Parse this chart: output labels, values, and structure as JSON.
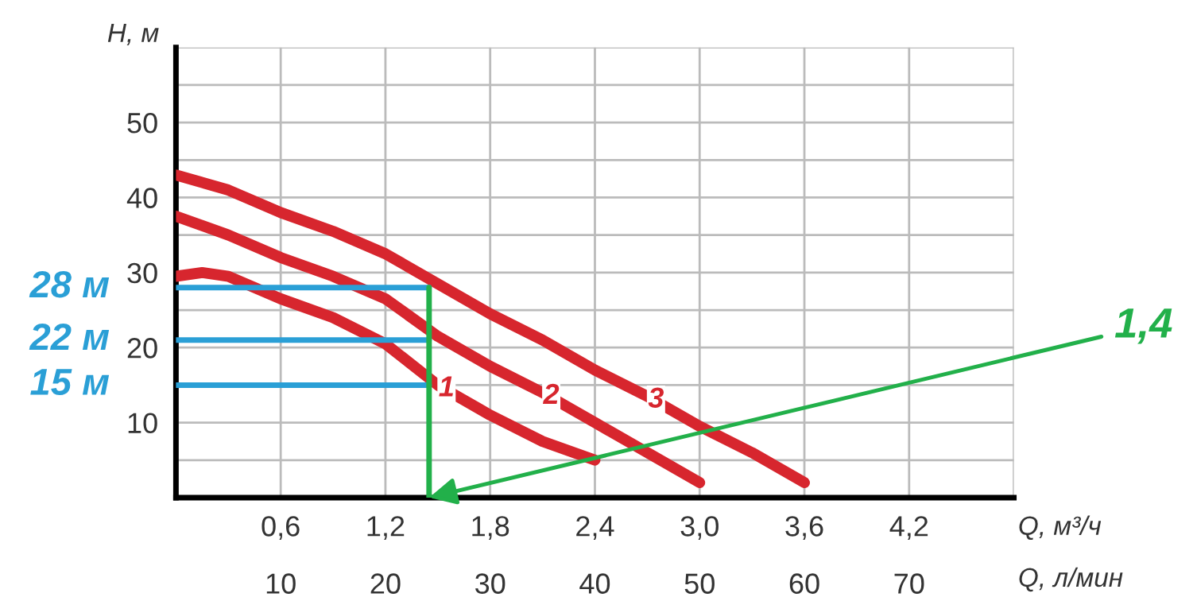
{
  "chart_data": {
    "type": "line",
    "xlabel": "Q, м³/ч",
    "x2label": "Q, л/мин",
    "ylabel": "H, м",
    "xlim": [
      0,
      4.8
    ],
    "xticks": [
      {
        "value": 0.6,
        "label": "0,6"
      },
      {
        "value": 1.2,
        "label": "1,2"
      },
      {
        "value": 1.8,
        "label": "1,8"
      },
      {
        "value": 2.4,
        "label": "2,4"
      },
      {
        "value": 3.0,
        "label": "3,0"
      },
      {
        "value": 3.6,
        "label": "3,6"
      },
      {
        "value": 4.2,
        "label": "4,2"
      },
      {
        "value": 4.8,
        "label": null
      }
    ],
    "x2lim": [
      0,
      80
    ],
    "x2ticks": [
      10,
      20,
      30,
      40,
      50,
      60,
      70
    ],
    "ylim": [
      0,
      60
    ],
    "yticks": [
      {
        "value": 5,
        "label": null
      },
      10,
      {
        "value": 15,
        "label": null
      },
      20,
      {
        "value": 25,
        "label": null
      },
      30,
      {
        "value": 35,
        "label": null
      },
      40,
      {
        "value": 45,
        "label": null
      },
      50,
      {
        "value": 55,
        "label": null
      },
      {
        "value": 60,
        "label": null
      }
    ],
    "grid": true,
    "legend": false,
    "marker": "none",
    "line_style": "solid",
    "series": [
      {
        "name": "1",
        "color": "#d7262e",
        "x": [
          0,
          0.15,
          0.3,
          0.6,
          0.9,
          1.2,
          1.5,
          1.8,
          2.1,
          2.4
        ],
        "values": [
          29.5,
          30,
          29.5,
          26.5,
          24,
          20.5,
          15,
          11,
          7.5,
          5
        ]
      },
      {
        "name": "2",
        "color": "#d7262e",
        "x": [
          0,
          0.3,
          0.6,
          0.9,
          1.2,
          1.5,
          1.8,
          2.1,
          2.4,
          2.7,
          3.0
        ],
        "values": [
          37.5,
          35,
          32,
          29.5,
          26.5,
          21.5,
          17.5,
          14,
          10,
          6,
          2
        ]
      },
      {
        "name": "3",
        "color": "#d7262e",
        "x": [
          0,
          0.3,
          0.6,
          0.9,
          1.2,
          1.5,
          1.8,
          2.1,
          2.4,
          2.7,
          3.0,
          3.3,
          3.6
        ],
        "values": [
          43,
          41,
          38,
          35.5,
          32.5,
          28.5,
          24.5,
          21,
          17,
          13.5,
          9.5,
          6,
          2
        ]
      },
      {
        "color": "#2a9fd6",
        "x": [
          0,
          1.45
        ],
        "values": [
          28,
          28
        ]
      },
      {
        "color": "#2a9fd6",
        "x": [
          0,
          1.45
        ],
        "values": [
          21,
          21
        ]
      },
      {
        "color": "#2a9fd6",
        "x": [
          0,
          1.45
        ],
        "values": [
          15,
          15
        ]
      },
      {
        "color": "#22b04a",
        "x": [
          1.45,
          1.45
        ],
        "values": [
          28,
          0
        ]
      }
    ],
    "annotations": [
      "28 м",
      "22 м",
      "15 м",
      {
        "text": "1,4",
        "x": 1.45,
        "y": 0
      }
    ]
  }
}
